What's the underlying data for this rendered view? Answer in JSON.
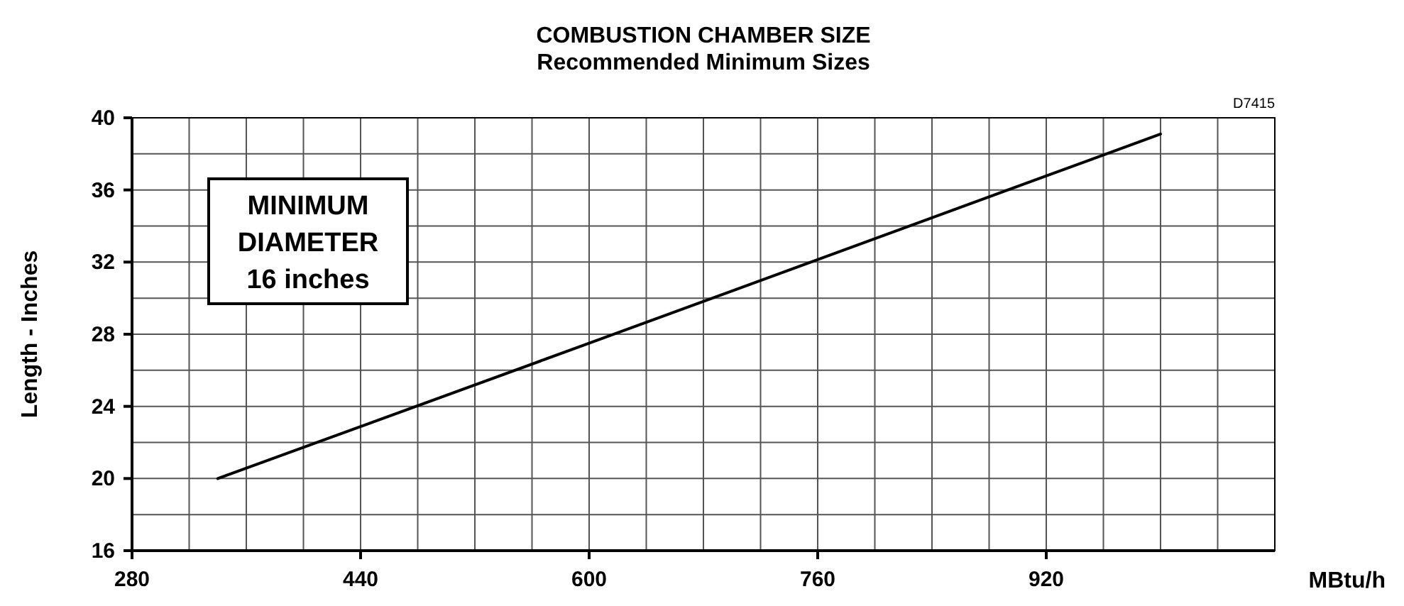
{
  "chart_data": {
    "type": "line",
    "title": "COMBUSTION CHAMBER SIZE",
    "subtitle": "Recommended Minimum Sizes",
    "xlabel": "MBtu/h",
    "ylabel": "Length - Inches",
    "annotations": [
      "MINIMUM\nDIAMETER\n16 inches",
      "D7415"
    ],
    "x": [
      340,
      600,
      1000
    ],
    "series": [
      {
        "color": "#000000",
        "values": [
          20,
          27.5,
          39.1
        ]
      }
    ],
    "xlim": [
      280,
      1080
    ],
    "xticks": [
      280,
      {
        "value": 320,
        "label": null
      },
      {
        "value": 360,
        "label": null
      },
      {
        "value": 400,
        "label": null
      },
      440,
      {
        "value": 480,
        "label": null
      },
      {
        "value": 520,
        "label": null
      },
      {
        "value": 560,
        "label": null
      },
      600,
      {
        "value": 640,
        "label": null
      },
      {
        "value": 680,
        "label": null
      },
      {
        "value": 720,
        "label": null
      },
      760,
      {
        "value": 800,
        "label": null
      },
      {
        "value": 840,
        "label": null
      },
      {
        "value": 880,
        "label": null
      },
      920,
      {
        "value": 960,
        "label": null
      },
      {
        "value": 1000,
        "label": null
      },
      {
        "value": 1040,
        "label": null
      }
    ],
    "ylim": [
      16,
      40
    ],
    "yticks": [
      16,
      {
        "value": 18,
        "label": null
      },
      20,
      {
        "value": 22,
        "label": null
      },
      24,
      {
        "value": 26,
        "label": null
      },
      28,
      {
        "value": 30,
        "label": null
      },
      32,
      {
        "value": 34,
        "label": null
      },
      36,
      {
        "value": 38,
        "label": null
      },
      40
    ],
    "grid": true,
    "marker": "none",
    "line_style": "solid"
  }
}
